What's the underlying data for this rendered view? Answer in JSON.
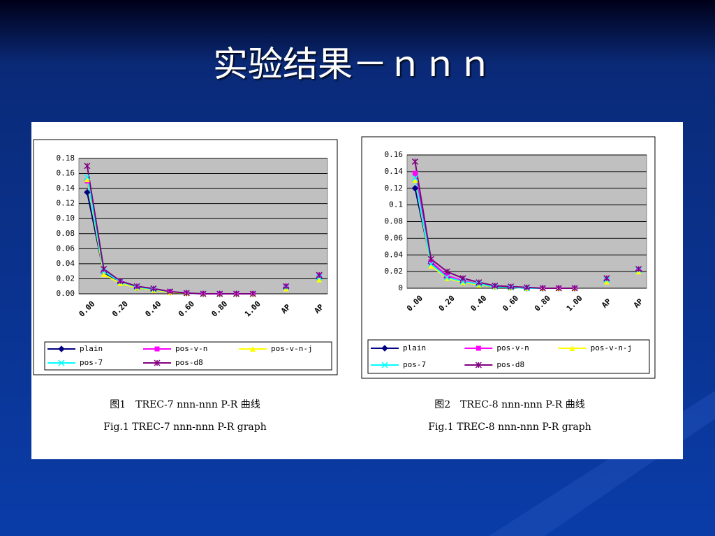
{
  "title": "实验结果－ｎｎｎ",
  "chart_data": [
    {
      "type": "line",
      "categories": [
        "0.00",
        null,
        "0.20",
        null,
        "0.40",
        null,
        "0.60",
        null,
        "0.80",
        null,
        "1.00",
        null,
        "AP",
        null,
        "AP"
      ],
      "series": [
        {
          "name": "plain",
          "color": "#000080",
          "marker": "diamond",
          "values": [
            0.135,
            0.028,
            0.015,
            0.008,
            0.005,
            0.002,
            0.001,
            0,
            0,
            0,
            0,
            null,
            0.008,
            null,
            0.02
          ]
        },
        {
          "name": "pos-v-n",
          "color": "#ff00ff",
          "marker": "square",
          "values": [
            0.15,
            0.03,
            0.016,
            0.009,
            0.006,
            0.003,
            0.001,
            0,
            0,
            0,
            0,
            null,
            0.01,
            null,
            0.024
          ]
        },
        {
          "name": "pos-v-n-j",
          "color": "#ffff00",
          "marker": "triangle",
          "values": [
            0.152,
            0.026,
            0.014,
            0.008,
            0.005,
            0.002,
            0.001,
            0,
            0,
            0,
            0,
            null,
            0.007,
            null,
            0.019
          ]
        },
        {
          "name": "pos-7",
          "color": "#00ffff",
          "marker": "x",
          "values": [
            0.155,
            0.03,
            0.016,
            0.009,
            0.006,
            0.003,
            0.001,
            0,
            0,
            0,
            0,
            null,
            0.009,
            null,
            0.022
          ]
        },
        {
          "name": "pos-d8",
          "color": "#800080",
          "marker": "star",
          "values": [
            0.17,
            0.033,
            0.017,
            0.01,
            0.007,
            0.003,
            0.001,
            0,
            0,
            0,
            0,
            null,
            0.01,
            null,
            0.025
          ]
        }
      ],
      "ylim": [
        0,
        0.18
      ],
      "yticks": [
        {
          "value": 0,
          "label": "0.00"
        },
        0.02,
        0.04,
        0.06,
        0.08,
        {
          "value": 0.1,
          "label": "0.10"
        },
        0.12,
        0.14,
        0.16,
        0.18
      ],
      "grid": true,
      "legend": "bottom",
      "caption": [
        "图1　TREC-7 nnn-nnn P-R 曲线",
        "Fig.1 TREC-7 nnn-nnn P-R graph"
      ]
    },
    {
      "type": "line",
      "categories": [
        "0.00",
        null,
        "0.20",
        null,
        "0.40",
        null,
        "0.60",
        null,
        "0.80",
        null,
        "1.00",
        null,
        "AP",
        null,
        "AP"
      ],
      "series": [
        {
          "name": "plain",
          "color": "#000080",
          "marker": "diamond",
          "values": [
            0.12,
            0.03,
            0.013,
            0.007,
            0.004,
            0.002,
            0.001,
            0,
            0,
            0,
            0,
            null,
            0.009,
            null,
            0.021
          ]
        },
        {
          "name": "pos-v-n",
          "color": "#ff00ff",
          "marker": "square",
          "values": [
            0.138,
            0.032,
            0.015,
            0.009,
            0.005,
            0.002,
            0.001,
            0,
            0,
            0,
            0,
            null,
            0.011,
            null,
            0.022
          ]
        },
        {
          "name": "pos-v-n-j",
          "color": "#ffff00",
          "marker": "triangle",
          "values": [
            0.13,
            0.027,
            0.012,
            0.007,
            0.004,
            0.002,
            0.001,
            0,
            0,
            0,
            0,
            null,
            0.008,
            null,
            0.02
          ]
        },
        {
          "name": "pos-7",
          "color": "#00ffff",
          "marker": "x",
          "values": [
            0.132,
            0.029,
            0.013,
            0.008,
            0.005,
            0.002,
            0.001,
            0,
            0,
            0,
            0,
            null,
            0.01,
            null,
            0.022
          ]
        },
        {
          "name": "pos-d8",
          "color": "#800080",
          "marker": "star",
          "values": [
            0.152,
            0.035,
            0.02,
            0.012,
            0.007,
            0.003,
            0.002,
            0.001,
            0,
            0,
            0,
            null,
            0.012,
            null,
            0.023
          ]
        }
      ],
      "ylim": [
        0,
        0.16
      ],
      "yticks": [
        0,
        0.02,
        0.04,
        0.06,
        0.08,
        0.1,
        0.12,
        0.14,
        0.16
      ],
      "grid": true,
      "legend": "bottom",
      "caption": [
        "图2　TREC-8 nnn-nnn P-R 曲线",
        "Fig.1 TREC-8 nnn-nnn P-R graph"
      ]
    }
  ]
}
